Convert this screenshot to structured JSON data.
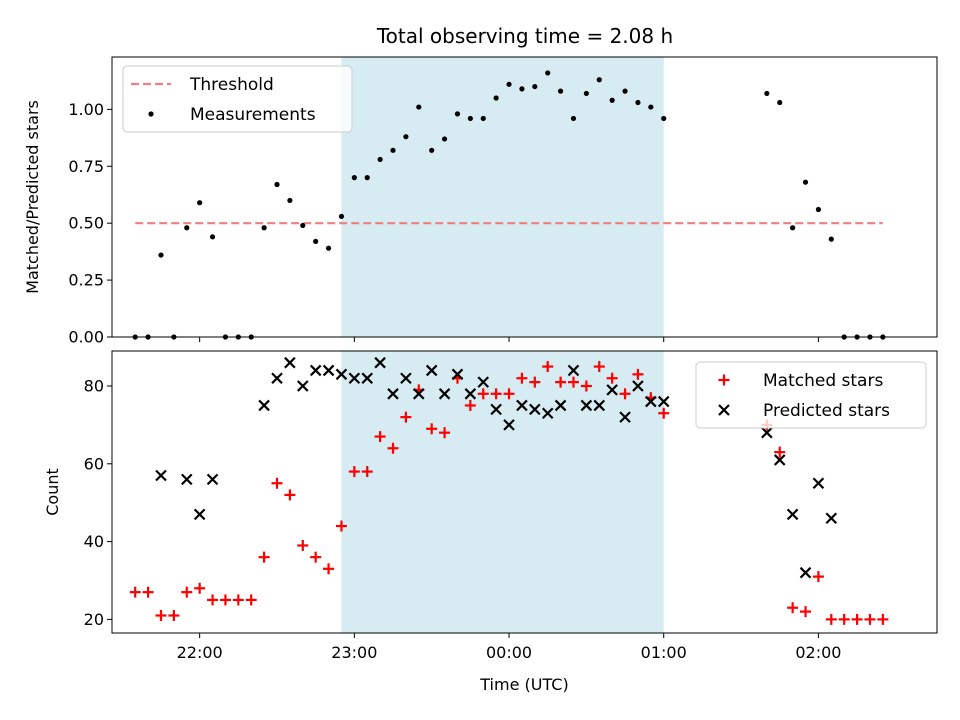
{
  "title": "Total observing time = 2.08 h",
  "colors": {
    "threshold": "#f08080",
    "measurements": "#000000",
    "matched": "#ff0000",
    "predicted": "#000000",
    "window": "#add8e6"
  },
  "chart_data": [
    {
      "type": "scatter",
      "ylabel": "Matched/Predicted stars",
      "ylim": [
        0,
        1.23
      ],
      "yticks": [
        "0.00",
        "0.25",
        "0.50",
        "0.75",
        "1.00"
      ],
      "xlim": [
        "21:26",
        "02:46"
      ],
      "xticks": [
        "22:00",
        "23:00",
        "00:00",
        "01:00",
        "02:00"
      ],
      "shaded_window": [
        "22:55",
        "01:00"
      ],
      "legend_position": "upper left",
      "threshold": {
        "name": "Threshold",
        "y": 0.5,
        "x_range": [
          "21:35",
          "02:25"
        ]
      },
      "series": [
        {
          "name": "Measurements",
          "marker": "dot",
          "points": [
            [
              "21:35",
              0.0
            ],
            [
              "21:40",
              0.0
            ],
            [
              "21:45",
              0.36
            ],
            [
              "21:50",
              0.0
            ],
            [
              "21:55",
              0.48
            ],
            [
              "22:00",
              0.59
            ],
            [
              "22:05",
              0.44
            ],
            [
              "22:10",
              0.0
            ],
            [
              "22:15",
              0.0
            ],
            [
              "22:20",
              0.0
            ],
            [
              "22:25",
              0.48
            ],
            [
              "22:30",
              0.67
            ],
            [
              "22:35",
              0.6
            ],
            [
              "22:40",
              0.49
            ],
            [
              "22:45",
              0.42
            ],
            [
              "22:50",
              0.39
            ],
            [
              "22:55",
              0.53
            ],
            [
              "23:00",
              0.7
            ],
            [
              "23:05",
              0.7
            ],
            [
              "23:10",
              0.78
            ],
            [
              "23:15",
              0.82
            ],
            [
              "23:20",
              0.88
            ],
            [
              "23:25",
              1.01
            ],
            [
              "23:30",
              0.82
            ],
            [
              "23:35",
              0.87
            ],
            [
              "23:40",
              0.98
            ],
            [
              "23:45",
              0.96
            ],
            [
              "23:50",
              0.96
            ],
            [
              "23:55",
              1.05
            ],
            [
              "00:00",
              1.11
            ],
            [
              "00:05",
              1.09
            ],
            [
              "00:10",
              1.1
            ],
            [
              "00:15",
              1.16
            ],
            [
              "00:20",
              1.08
            ],
            [
              "00:25",
              0.96
            ],
            [
              "00:30",
              1.07
            ],
            [
              "00:35",
              1.13
            ],
            [
              "00:40",
              1.04
            ],
            [
              "00:45",
              1.08
            ],
            [
              "00:50",
              1.03
            ],
            [
              "00:55",
              1.01
            ],
            [
              "01:00",
              0.96
            ],
            [
              "01:40",
              1.07
            ],
            [
              "01:45",
              1.03
            ],
            [
              "01:50",
              0.48
            ],
            [
              "01:55",
              0.68
            ],
            [
              "02:00",
              0.56
            ],
            [
              "02:05",
              0.43
            ],
            [
              "02:10",
              0.0
            ],
            [
              "02:15",
              0.0
            ],
            [
              "02:20",
              0.0
            ],
            [
              "02:25",
              0.0
            ]
          ]
        }
      ]
    },
    {
      "type": "scatter",
      "ylabel": "Count",
      "xlabel": "Time (UTC)",
      "ylim": [
        16.5,
        89
      ],
      "yticks": [
        "20",
        "40",
        "60",
        "80"
      ],
      "xlim": [
        "21:26",
        "02:46"
      ],
      "xticks": [
        "22:00",
        "23:00",
        "00:00",
        "01:00",
        "02:00"
      ],
      "shaded_window": [
        "22:55",
        "01:00"
      ],
      "legend_position": "upper right",
      "series": [
        {
          "name": "Matched stars",
          "marker": "plus",
          "points": [
            [
              "21:35",
              27
            ],
            [
              "21:40",
              27
            ],
            [
              "21:45",
              21
            ],
            [
              "21:50",
              21
            ],
            [
              "21:55",
              27
            ],
            [
              "22:00",
              28
            ],
            [
              "22:05",
              25
            ],
            [
              "22:10",
              25
            ],
            [
              "22:15",
              25
            ],
            [
              "22:20",
              25
            ],
            [
              "22:25",
              36
            ],
            [
              "22:30",
              55
            ],
            [
              "22:35",
              52
            ],
            [
              "22:40",
              39
            ],
            [
              "22:45",
              36
            ],
            [
              "22:50",
              33
            ],
            [
              "22:55",
              44
            ],
            [
              "23:00",
              58
            ],
            [
              "23:05",
              58
            ],
            [
              "23:10",
              67
            ],
            [
              "23:15",
              64
            ],
            [
              "23:20",
              72
            ],
            [
              "23:25",
              79
            ],
            [
              "23:30",
              69
            ],
            [
              "23:35",
              68
            ],
            [
              "23:40",
              82
            ],
            [
              "23:45",
              75
            ],
            [
              "23:50",
              78
            ],
            [
              "23:55",
              78
            ],
            [
              "00:00",
              78
            ],
            [
              "00:05",
              82
            ],
            [
              "00:10",
              81
            ],
            [
              "00:15",
              85
            ],
            [
              "00:20",
              81
            ],
            [
              "00:25",
              81
            ],
            [
              "00:30",
              80
            ],
            [
              "00:35",
              85
            ],
            [
              "00:40",
              82
            ],
            [
              "00:45",
              78
            ],
            [
              "00:50",
              83
            ],
            [
              "00:55",
              77
            ],
            [
              "01:00",
              73
            ],
            [
              "01:40",
              70
            ],
            [
              "01:45",
              63
            ],
            [
              "01:50",
              23
            ],
            [
              "01:55",
              22
            ],
            [
              "02:00",
              31
            ],
            [
              "02:05",
              20
            ],
            [
              "02:10",
              20
            ],
            [
              "02:15",
              20
            ],
            [
              "02:20",
              20
            ],
            [
              "02:25",
              20
            ]
          ]
        },
        {
          "name": "Predicted stars",
          "marker": "x",
          "points": [
            [
              "21:45",
              57
            ],
            [
              "21:55",
              56
            ],
            [
              "22:00",
              47
            ],
            [
              "22:05",
              56
            ],
            [
              "22:25",
              75
            ],
            [
              "22:30",
              82
            ],
            [
              "22:35",
              86
            ],
            [
              "22:40",
              80
            ],
            [
              "22:45",
              84
            ],
            [
              "22:50",
              84
            ],
            [
              "22:55",
              83
            ],
            [
              "23:00",
              82
            ],
            [
              "23:05",
              82
            ],
            [
              "23:10",
              86
            ],
            [
              "23:15",
              78
            ],
            [
              "23:20",
              82
            ],
            [
              "23:25",
              78
            ],
            [
              "23:30",
              84
            ],
            [
              "23:35",
              78
            ],
            [
              "23:40",
              83
            ],
            [
              "23:45",
              78
            ],
            [
              "23:50",
              81
            ],
            [
              "23:55",
              74
            ],
            [
              "00:00",
              70
            ],
            [
              "00:05",
              75
            ],
            [
              "00:10",
              74
            ],
            [
              "00:15",
              73
            ],
            [
              "00:20",
              75
            ],
            [
              "00:25",
              84
            ],
            [
              "00:30",
              75
            ],
            [
              "00:35",
              75
            ],
            [
              "00:40",
              79
            ],
            [
              "00:45",
              72
            ],
            [
              "00:50",
              80
            ],
            [
              "00:55",
              76
            ],
            [
              "01:00",
              76
            ],
            [
              "01:40",
              68
            ],
            [
              "01:45",
              61
            ],
            [
              "01:50",
              47
            ],
            [
              "01:55",
              32
            ],
            [
              "02:00",
              55
            ],
            [
              "02:05",
              46
            ]
          ]
        }
      ]
    }
  ]
}
